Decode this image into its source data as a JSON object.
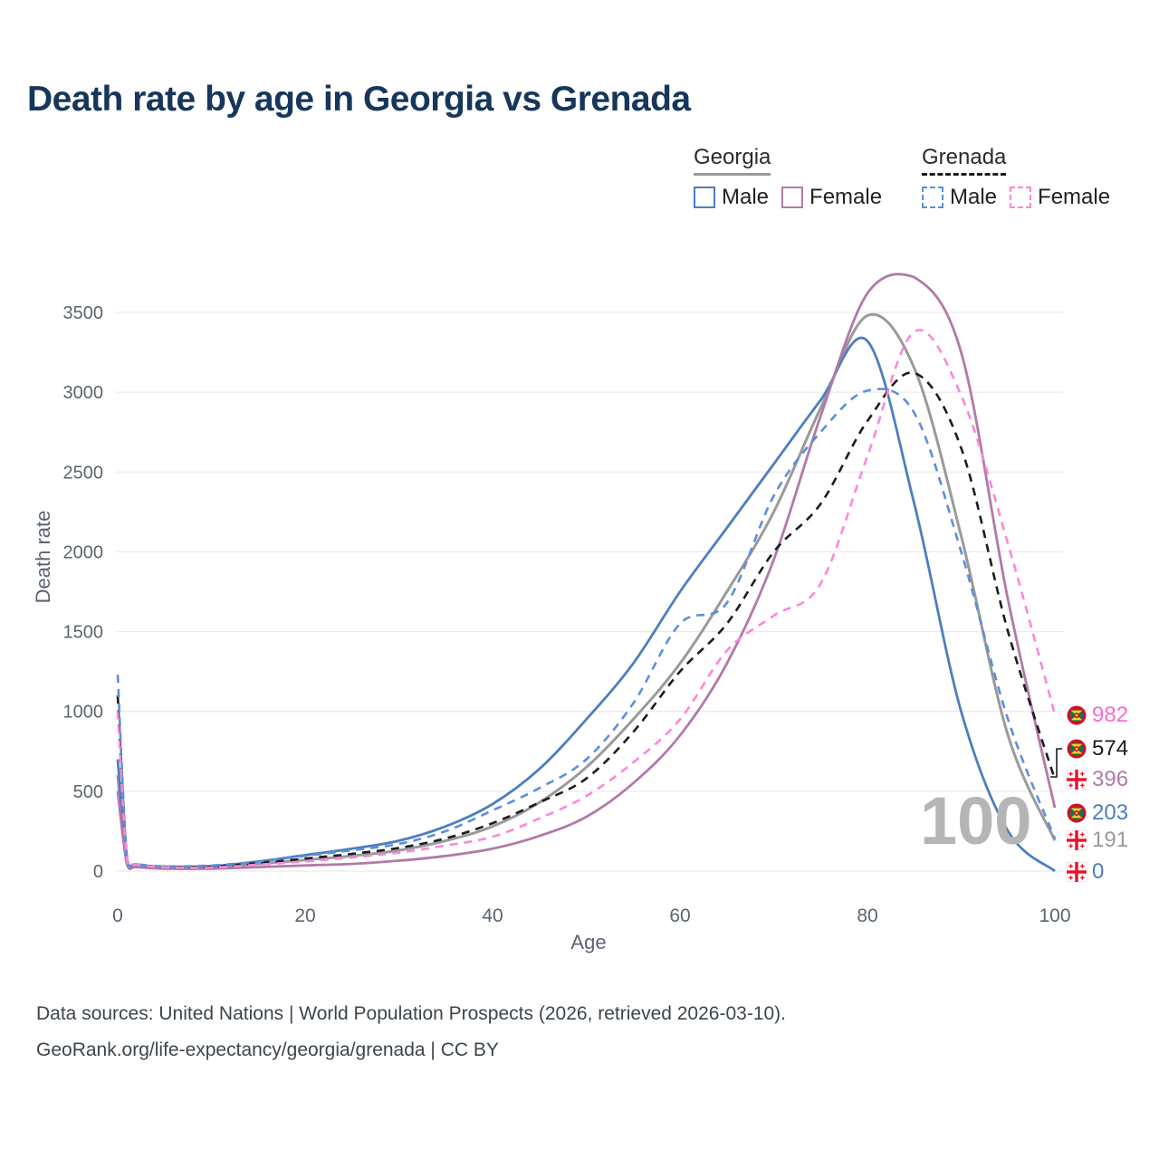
{
  "title": "Death rate by age in Georgia vs Grenada",
  "legend": {
    "groups": [
      {
        "label": "Georgia",
        "style": "solid"
      },
      {
        "label": "Grenada",
        "style": "dashed"
      }
    ],
    "items": [
      {
        "group": "Georgia",
        "label": "Male",
        "color": "#4d7ebf",
        "dash": false
      },
      {
        "group": "Georgia",
        "label": "Female",
        "color": "#b07aa9",
        "dash": false
      },
      {
        "group": "Grenada",
        "label": "Male",
        "color": "#5b8fdd",
        "dash": true
      },
      {
        "group": "Grenada",
        "label": "Female",
        "color": "#fb87da",
        "dash": true
      }
    ]
  },
  "axes": {
    "x_label": "Age",
    "y_label": "Death rate",
    "x_ticks": [
      0,
      20,
      40,
      60,
      80,
      100
    ],
    "y_ticks": [
      0,
      500,
      1000,
      1500,
      2000,
      2500,
      3000,
      3500
    ]
  },
  "watermark": "100",
  "footer": {
    "line1": "Data sources: United Nations | World Population Prospects (2026, retrieved 2026-03-10).",
    "line2": "GeoRank.org/life-expectancy/georgia/grenada | CC BY"
  },
  "chart_data": {
    "type": "line",
    "title": "Death rate by age in Georgia vs Grenada",
    "xlabel": "Age",
    "ylabel": "Death rate",
    "xlim": [
      0,
      100
    ],
    "ylim": [
      0,
      3750
    ],
    "x": [
      0,
      1,
      2,
      5,
      10,
      15,
      20,
      25,
      30,
      35,
      40,
      45,
      50,
      55,
      60,
      65,
      70,
      75,
      80,
      85,
      90,
      95,
      100
    ],
    "series": [
      {
        "id": "georgia-both",
        "name": "Georgia Both",
        "country": "Georgia",
        "sex": "Both",
        "color": "#9a9a9a",
        "dash": false,
        "width": 3,
        "values": [
          600,
          50,
          30,
          20,
          22,
          45,
          70,
          95,
          130,
          190,
          280,
          430,
          650,
          950,
          1300,
          1750,
          2250,
          2900,
          3480,
          3150,
          2100,
          850,
          191
        ]
      },
      {
        "id": "georgia-male",
        "name": "Georgia Male",
        "country": "Georgia",
        "sex": "Male",
        "color": "#4d7ebf",
        "dash": false,
        "width": 2.8,
        "values": [
          700,
          60,
          35,
          25,
          30,
          60,
          100,
          140,
          190,
          280,
          420,
          640,
          950,
          1300,
          1750,
          2150,
          2550,
          2950,
          3320,
          2300,
          1000,
          250,
          0
        ]
      },
      {
        "id": "georgia-female",
        "name": "Georgia Female",
        "country": "Georgia",
        "sex": "Female",
        "color": "#b07aa9",
        "dash": false,
        "width": 2.8,
        "values": [
          500,
          40,
          25,
          15,
          15,
          25,
          35,
          45,
          65,
          95,
          140,
          220,
          340,
          550,
          850,
          1300,
          1950,
          2850,
          3620,
          3720,
          3250,
          1700,
          396
        ]
      },
      {
        "id": "grenada-both",
        "name": "Grenada Both",
        "country": "Grenada",
        "sex": "Both",
        "color": "#1c1c1c",
        "dash": true,
        "width": 2.6,
        "values": [
          1100,
          75,
          42,
          28,
          28,
          50,
          78,
          108,
          145,
          205,
          300,
          430,
          580,
          870,
          1250,
          1550,
          2000,
          2300,
          2820,
          3120,
          2650,
          1500,
          574
        ]
      },
      {
        "id": "grenada-male",
        "name": "Grenada Male",
        "country": "Grenada",
        "sex": "Male",
        "color": "#5b8fdd",
        "dash": true,
        "width": 2.6,
        "values": [
          1230,
          80,
          45,
          30,
          35,
          60,
          95,
          130,
          170,
          250,
          380,
          520,
          700,
          1050,
          1550,
          1680,
          2350,
          2750,
          3010,
          2870,
          2000,
          950,
          203
        ]
      },
      {
        "id": "grenada-female",
        "name": "Grenada Female",
        "country": "Grenada",
        "sex": "Female",
        "color": "#fb87da",
        "dash": true,
        "width": 2.6,
        "values": [
          1000,
          70,
          40,
          25,
          22,
          40,
          60,
          85,
          115,
          160,
          215,
          330,
          470,
          680,
          950,
          1380,
          1600,
          1800,
          2600,
          3380,
          2980,
          2050,
          982
        ]
      }
    ],
    "end_labels": [
      {
        "value": "982",
        "color": "#fb6ad2",
        "flag": "grenada",
        "series": "grenada-female"
      },
      {
        "value": "574",
        "color": "#1c1c1c",
        "flag": "grenada",
        "series": "grenada-both"
      },
      {
        "value": "396",
        "color": "#b07aa9",
        "flag": "georgia",
        "series": "georgia-female"
      },
      {
        "value": "203",
        "color": "#4d7ebf",
        "flag": "grenada",
        "series": "grenada-male"
      },
      {
        "value": "191",
        "color": "#9a9a9a",
        "flag": "georgia",
        "series": "georgia-both"
      },
      {
        "value": "0",
        "color": "#4d7ebf",
        "flag": "georgia",
        "series": "georgia-male"
      }
    ],
    "legend_position": "top-right",
    "grid": "horizontal"
  }
}
